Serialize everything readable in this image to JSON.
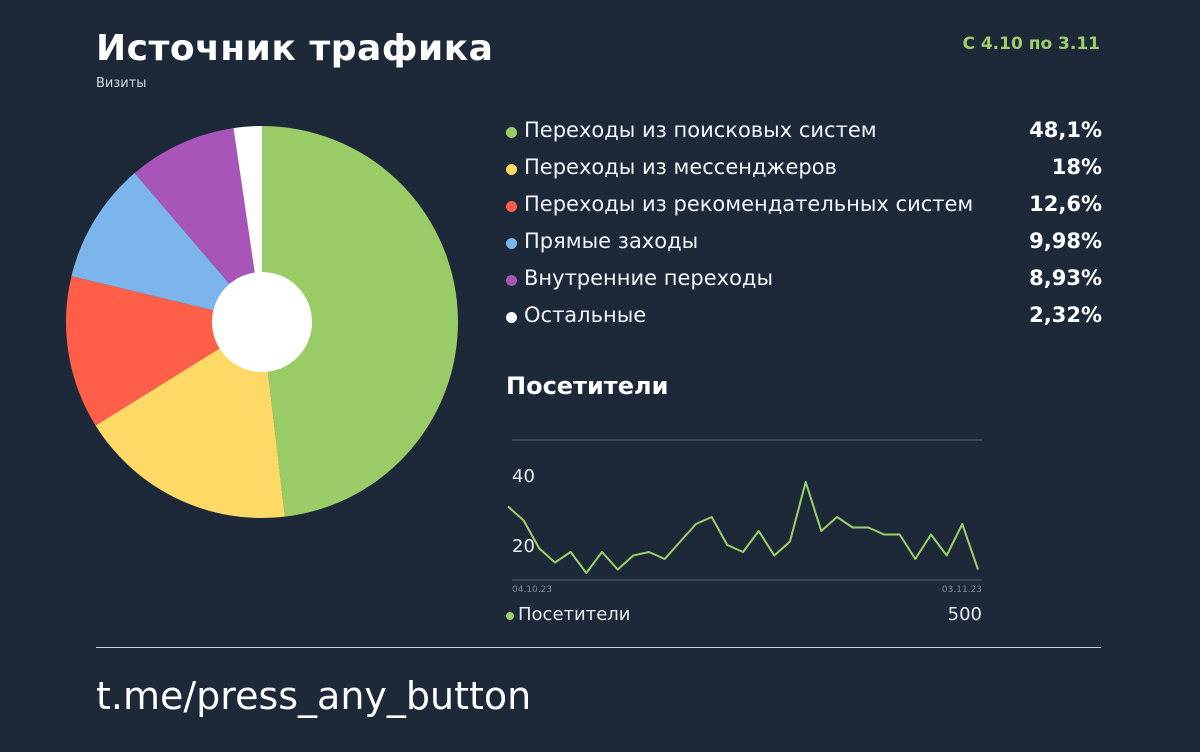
{
  "header": {
    "title": "Источник трафика",
    "subtitle": "Визиты",
    "period": "С 4.10 по 3.11"
  },
  "chart_data": [
    {
      "type": "pie",
      "title": "Источник трафика",
      "subtitle": "Визиты",
      "slices": [
        {
          "label": "Переходы из поисковых систем",
          "value": 48.1,
          "display": "48,1%",
          "color": "#99cc66"
        },
        {
          "label": "Переходы из мессенджеров",
          "value": 18,
          "display": "18%",
          "color": "#fed966"
        },
        {
          "label": "Переходы из рекомендательных систем",
          "value": 12.6,
          "display": "12,6%",
          "color": "#ff5f49"
        },
        {
          "label": "Прямые заходы",
          "value": 9.98,
          "display": "9,98%",
          "color": "#7cb5ec"
        },
        {
          "label": "Внутренние переходы",
          "value": 8.93,
          "display": "8,93%",
          "color": "#a855ba"
        },
        {
          "label": "Остальные",
          "value": 2.32,
          "display": "2,32%",
          "color": "#ffffff"
        }
      ],
      "donut_hole_color": "#ffffff",
      "legend_position": "right"
    },
    {
      "type": "line",
      "title": "Посетители",
      "x_start_label": "04.10.23",
      "x_end_label": "03.11.23",
      "ylim": [
        10,
        50
      ],
      "yticks": [
        20,
        40
      ],
      "gridlines": [
        10,
        50
      ],
      "series": [
        {
          "name": "Посетители",
          "color": "#9ccf6a",
          "total": "500",
          "values": [
            31,
            27,
            19,
            15,
            18,
            12,
            18,
            13,
            17,
            18,
            16,
            21,
            26,
            28,
            20,
            18,
            24,
            17,
            21,
            38,
            24,
            28,
            25,
            25,
            23,
            23,
            16,
            23,
            17,
            26,
            13
          ]
        }
      ]
    }
  ],
  "footer": {
    "link": "t.me/press_any_button"
  }
}
